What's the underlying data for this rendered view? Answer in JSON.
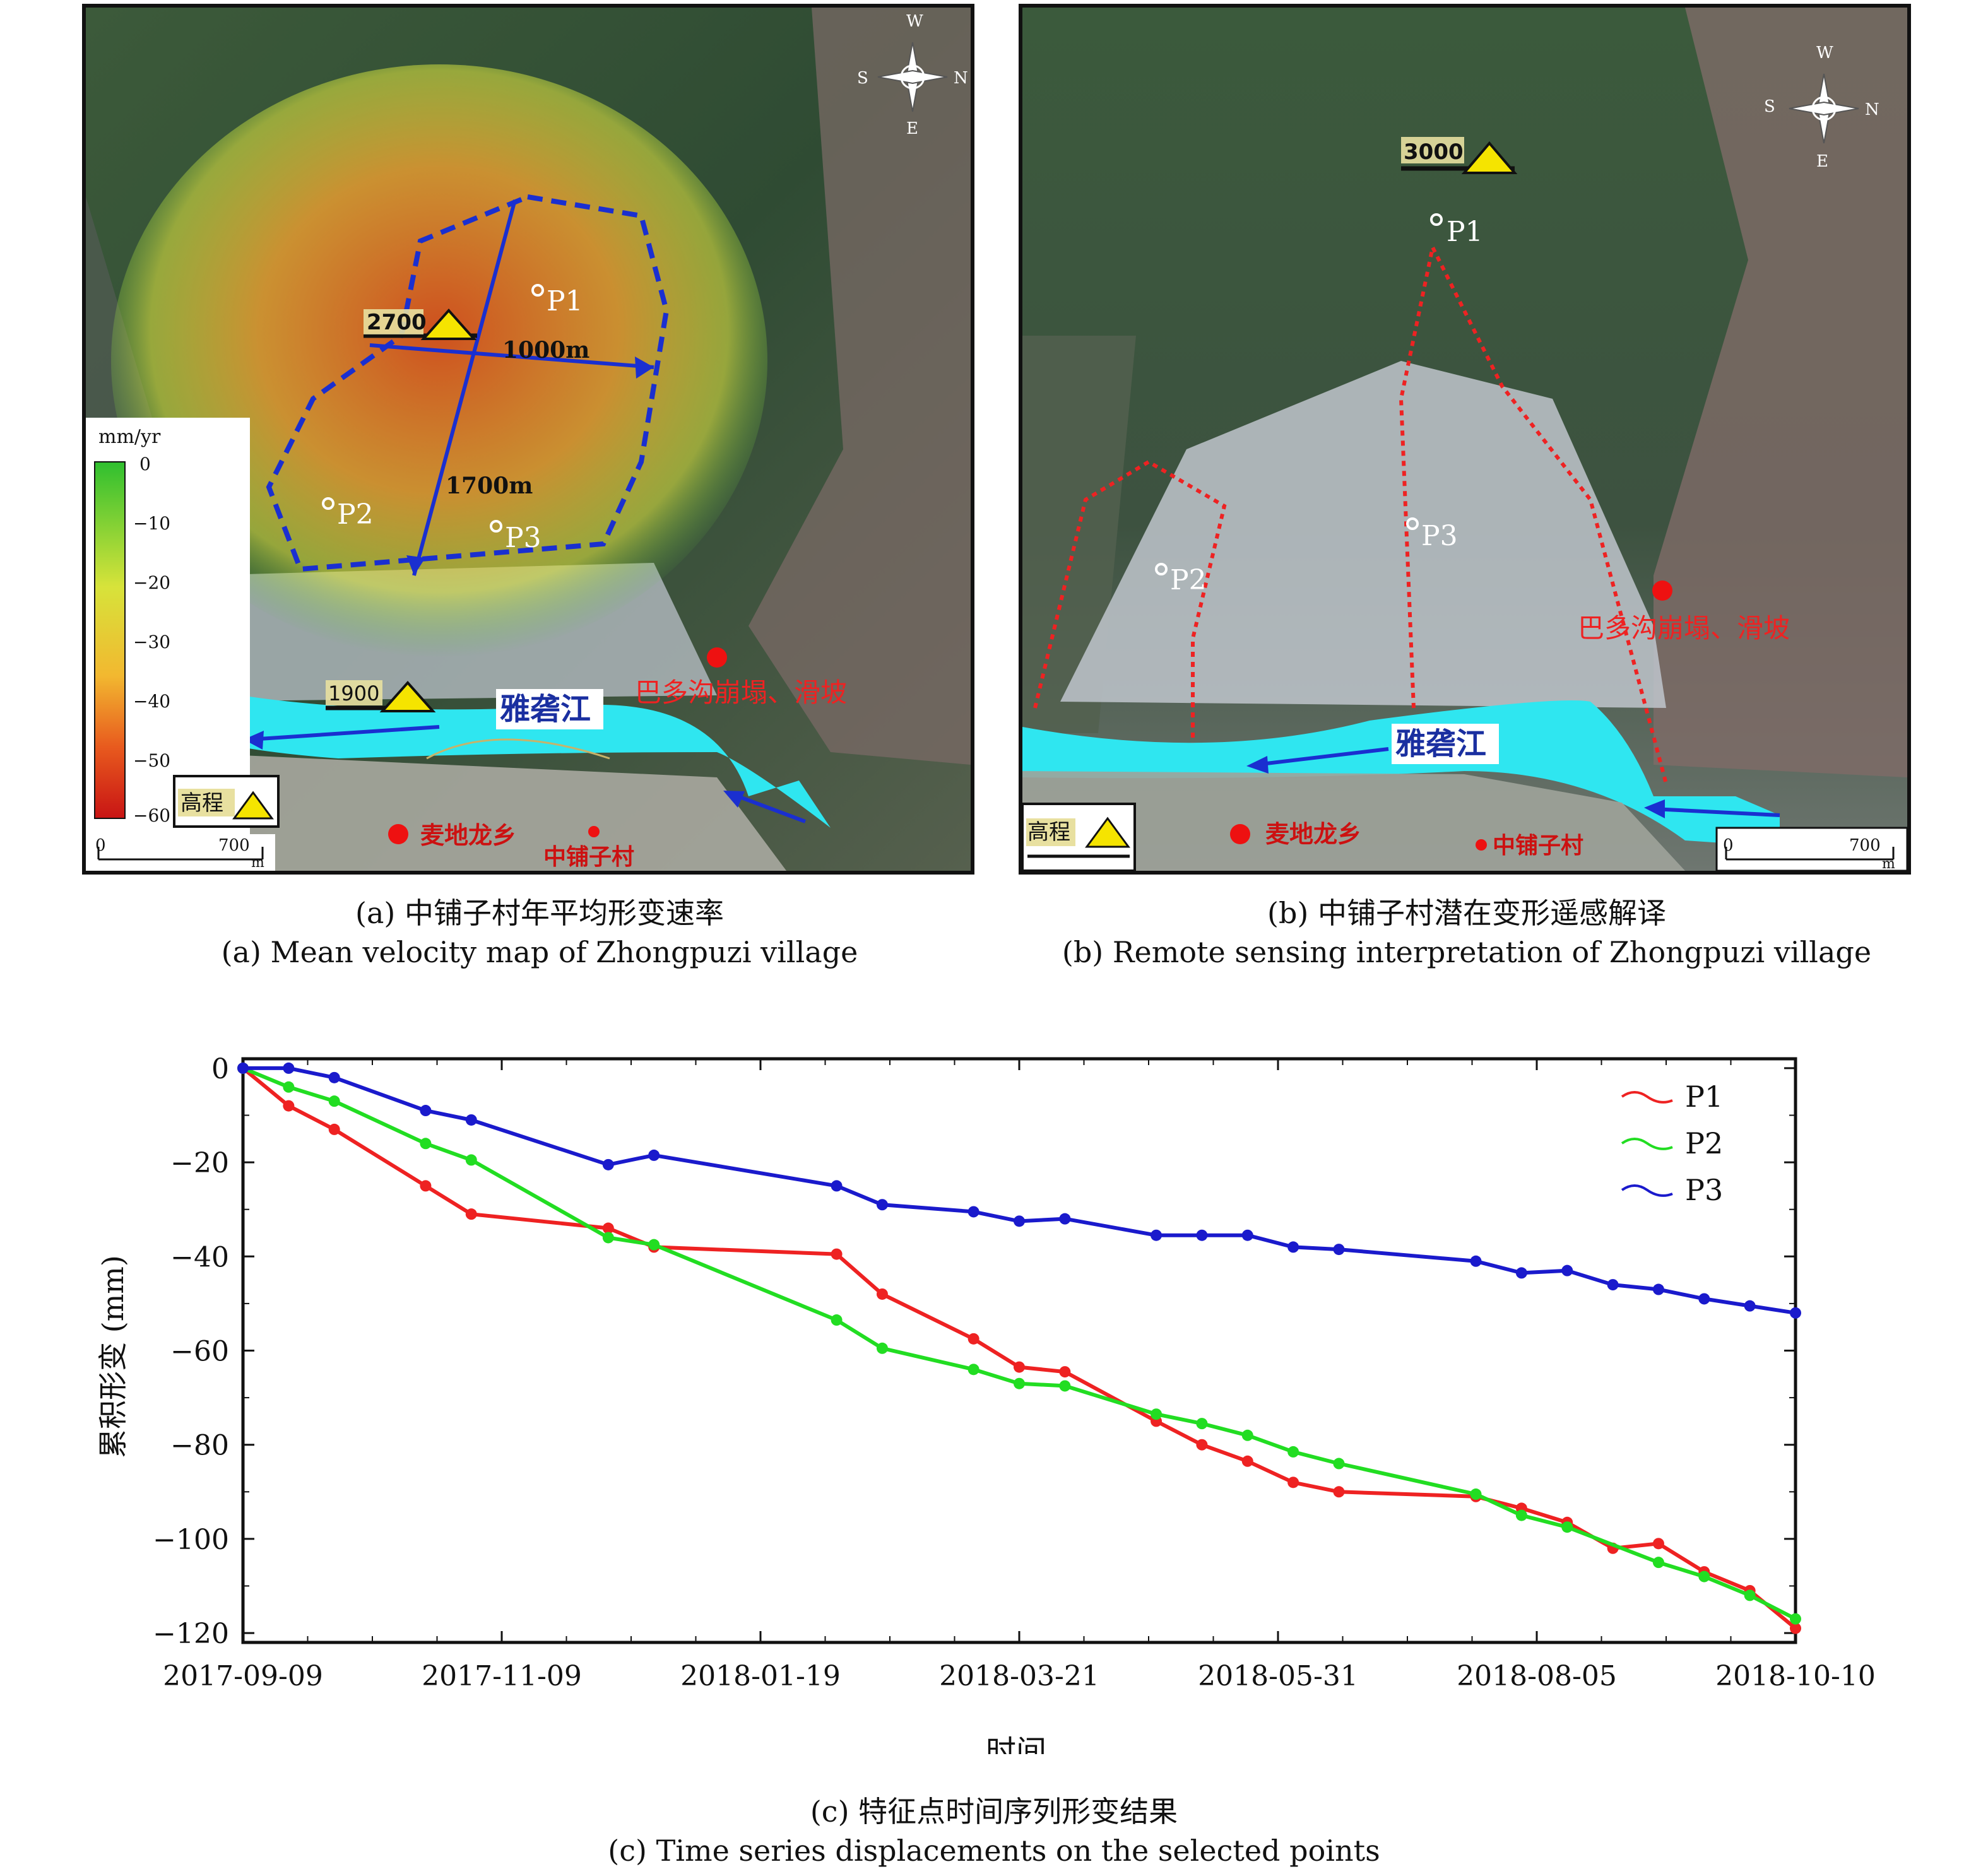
{
  "panel_a": {
    "compass": [
      "W",
      "N",
      "S",
      "E"
    ],
    "legend_unit": "mm/yr",
    "legend_ticks": [
      "0",
      "−10",
      "−20",
      "−30",
      "−40",
      "−50",
      "−60"
    ],
    "elev_top": "2700",
    "elev_bottom": "1900",
    "dist_horizontal": "1000m",
    "dist_vertical": "1700m",
    "points": [
      "P1",
      "P2",
      "P3"
    ],
    "river": "雅砻江",
    "landslide_note": "巴多沟崩塌、滑坡",
    "town": "麦地龙乡",
    "village": "中铺子村",
    "elev_legend": "高程",
    "scale_zero": "0",
    "scale_end": "700",
    "scale_unit": "m",
    "caption_cn": "(a) 中铺子村年平均形变速率",
    "caption_en": "(a) Mean velocity map of Zhongpuzi village"
  },
  "panel_b": {
    "compass": [
      "W",
      "N",
      "S",
      "E"
    ],
    "elev_top": "3000",
    "points": [
      "P1",
      "P2",
      "P3"
    ],
    "river": "雅砻江",
    "landslide_note": "巴多沟崩塌、滑坡",
    "town": "麦地龙乡",
    "village": "中铺子村",
    "elev_legend": "高程",
    "scale_zero": "0",
    "scale_end": "700",
    "scale_unit": "m",
    "caption_cn": "(b) 中铺子村潜在变形遥感解译",
    "caption_en": "(b) Remote sensing interpretation of Zhongpuzi village"
  },
  "chart_data": {
    "type": "line",
    "xlabel": "时间",
    "ylabel": "累积形变 (mm)",
    "x_tick_labels": [
      "2017-09-09",
      "2017-11-09",
      "2018-01-19",
      "2018-03-21",
      "2018-05-31",
      "2018-08-05",
      "2018-10-10"
    ],
    "y_tick_labels": [
      "0",
      "−20",
      "−40",
      "−60",
      "−80",
      "−100",
      "−120"
    ],
    "ylim": [
      -122,
      2
    ],
    "legend_position": "top-right",
    "series": [
      {
        "name": "P1",
        "color": "#ee2222",
        "points": [
          [
            0,
            0
          ],
          [
            12,
            -8
          ],
          [
            24,
            -13
          ],
          [
            48,
            -25
          ],
          [
            60,
            -31
          ],
          [
            96,
            -34
          ],
          [
            108,
            -38
          ],
          [
            156,
            -39.5
          ],
          [
            168,
            -48
          ],
          [
            192,
            -57.5
          ],
          [
            204,
            -63.5
          ],
          [
            216,
            -64.5
          ],
          [
            240,
            -75
          ],
          [
            252,
            -80
          ],
          [
            264,
            -83.5
          ],
          [
            276,
            -88
          ],
          [
            288,
            -90
          ],
          [
            324,
            -91
          ],
          [
            336,
            -93.5
          ],
          [
            348,
            -96.5
          ],
          [
            360,
            -102
          ],
          [
            372,
            -101
          ],
          [
            384,
            -107
          ],
          [
            396,
            -111
          ],
          [
            408,
            -119
          ]
        ]
      },
      {
        "name": "P2",
        "color": "#22dd22",
        "points": [
          [
            0,
            0
          ],
          [
            12,
            -4
          ],
          [
            24,
            -7
          ],
          [
            48,
            -16
          ],
          [
            60,
            -19.5
          ],
          [
            96,
            -36
          ],
          [
            108,
            -37.5
          ],
          [
            156,
            -53.5
          ],
          [
            168,
            -59.5
          ],
          [
            192,
            -64
          ],
          [
            204,
            -67
          ],
          [
            216,
            -67.5
          ],
          [
            240,
            -73.5
          ],
          [
            252,
            -75.5
          ],
          [
            264,
            -78
          ],
          [
            276,
            -81.5
          ],
          [
            288,
            -84
          ],
          [
            324,
            -90.5
          ],
          [
            336,
            -95
          ],
          [
            348,
            -97.5
          ],
          [
            372,
            -105
          ],
          [
            384,
            -108
          ],
          [
            396,
            -112
          ],
          [
            408,
            -117
          ]
        ]
      },
      {
        "name": "P3",
        "color": "#1a1acc",
        "points": [
          [
            0,
            0
          ],
          [
            12,
            0
          ],
          [
            24,
            -2
          ],
          [
            48,
            -9
          ],
          [
            60,
            -11
          ],
          [
            96,
            -20.5
          ],
          [
            108,
            -18.5
          ],
          [
            156,
            -25
          ],
          [
            168,
            -29
          ],
          [
            192,
            -30.5
          ],
          [
            204,
            -32.5
          ],
          [
            216,
            -32
          ],
          [
            240,
            -35.5
          ],
          [
            252,
            -35.5
          ],
          [
            264,
            -35.5
          ],
          [
            276,
            -38
          ],
          [
            288,
            -38.5
          ],
          [
            324,
            -41
          ],
          [
            336,
            -43.5
          ],
          [
            348,
            -43
          ],
          [
            360,
            -46
          ],
          [
            372,
            -47
          ],
          [
            384,
            -49
          ],
          [
            396,
            -50.5
          ],
          [
            408,
            -52
          ]
        ]
      }
    ],
    "x_range_days": [
      0,
      408
    ],
    "caption_cn": "(c) 特征点时间序列形变结果",
    "caption_en": "(c) Time series displacements on the selected points"
  }
}
